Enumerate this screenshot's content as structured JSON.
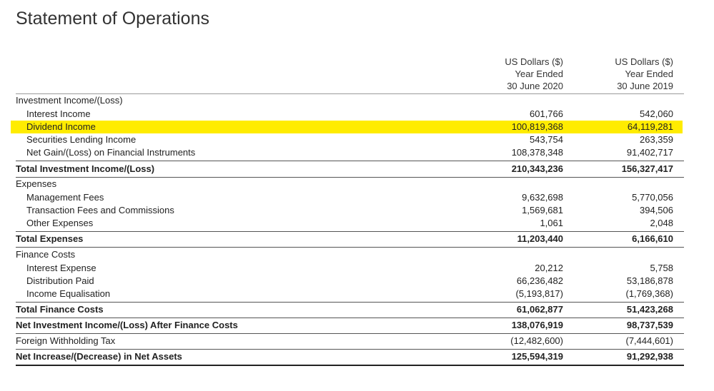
{
  "header": {
    "title": "Statement of Operations"
  },
  "table": {
    "columns": [
      [
        "US Dollars ($)",
        "Year Ended",
        "30 June 2020"
      ],
      [
        "US Dollars ($)",
        "Year Ended",
        "30 June 2019"
      ]
    ],
    "rows": [
      [
        "Investment Income/(Loss)"
      ],
      [
        "Interest Income",
        "601,766",
        "542,060"
      ],
      [
        "Dividend Income",
        "100,819,368",
        "64,119,281"
      ],
      [
        "Securities Lending Income",
        "543,754",
        "263,359"
      ],
      [
        "Net Gain/(Loss) on Financial Instruments",
        "108,378,348",
        "91,402,717"
      ],
      [
        "Total Investment Income/(Loss)",
        "210,343,236",
        "156,327,417"
      ],
      [
        "Expenses"
      ],
      [
        "Management Fees",
        "9,632,698",
        "5,770,056"
      ],
      [
        "Transaction Fees and Commissions",
        "1,569,681",
        "394,506"
      ],
      [
        "Other Expenses",
        "1,061",
        "2,048"
      ],
      [
        "Total Expenses",
        "11,203,440",
        "6,166,610"
      ],
      [
        "Finance Costs"
      ],
      [
        "Interest Expense",
        "20,212",
        "5,758"
      ],
      [
        "Distribution Paid",
        "66,236,482",
        "53,186,878"
      ],
      [
        "Income Equalisation",
        "(5,193,817)",
        "(1,769,368)"
      ],
      [
        "Total Finance Costs",
        "61,062,877",
        "51,423,268"
      ],
      [
        "Net Investment Income/(Loss) After Finance Costs",
        "138,076,919",
        "98,737,539"
      ],
      [
        "Foreign Withholding Tax",
        "(12,482,600)",
        "(7,444,601)"
      ],
      [
        "Net Increase/(Decrease) in Net Assets",
        "125,594,319",
        "91,292,938"
      ]
    ]
  }
}
